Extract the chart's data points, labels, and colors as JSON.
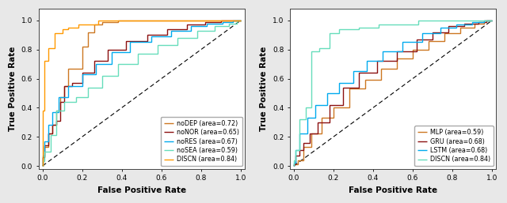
{
  "left_curves": [
    {
      "label": "noDEP (area=0.72)",
      "color": "#CC7722",
      "fpr": [
        0.0,
        0.0,
        0.01,
        0.01,
        0.03,
        0.03,
        0.05,
        0.05,
        0.07,
        0.07,
        0.09,
        0.09,
        0.11,
        0.11,
        0.13,
        0.13,
        0.2,
        0.2,
        0.23,
        0.23,
        0.26,
        0.26,
        0.3,
        0.3,
        0.38,
        0.38,
        0.55,
        0.55,
        0.65,
        0.65,
        0.75,
        0.75,
        0.85,
        0.85,
        0.95,
        0.95,
        1.0
      ],
      "tpr": [
        0.0,
        0.06,
        0.06,
        0.13,
        0.13,
        0.22,
        0.22,
        0.28,
        0.28,
        0.38,
        0.38,
        0.47,
        0.47,
        0.55,
        0.55,
        0.67,
        0.67,
        0.82,
        0.82,
        0.92,
        0.92,
        0.97,
        0.97,
        0.99,
        0.99,
        1.0,
        1.0,
        1.0,
        1.0,
        1.0,
        1.0,
        1.0,
        1.0,
        1.0,
        1.0,
        1.0,
        1.0
      ]
    },
    {
      "label": "noNOR (area=0.65)",
      "color": "#8B1010",
      "fpr": [
        0.0,
        0.0,
        0.01,
        0.01,
        0.03,
        0.03,
        0.05,
        0.05,
        0.07,
        0.07,
        0.09,
        0.09,
        0.11,
        0.11,
        0.15,
        0.15,
        0.2,
        0.2,
        0.26,
        0.26,
        0.33,
        0.33,
        0.42,
        0.42,
        0.53,
        0.53,
        0.63,
        0.63,
        0.73,
        0.73,
        0.82,
        0.82,
        0.9,
        0.9,
        0.96,
        0.96,
        1.0
      ],
      "tpr": [
        0.0,
        0.06,
        0.06,
        0.14,
        0.14,
        0.22,
        0.22,
        0.28,
        0.28,
        0.31,
        0.31,
        0.44,
        0.44,
        0.55,
        0.55,
        0.57,
        0.57,
        0.64,
        0.64,
        0.72,
        0.72,
        0.8,
        0.8,
        0.86,
        0.86,
        0.9,
        0.9,
        0.94,
        0.94,
        0.97,
        0.97,
        0.99,
        0.99,
        1.0,
        1.0,
        1.0,
        1.0
      ]
    },
    {
      "label": "noRES (area=0.67)",
      "color": "#00AAEE",
      "fpr": [
        0.0,
        0.0,
        0.01,
        0.01,
        0.03,
        0.03,
        0.05,
        0.05,
        0.08,
        0.08,
        0.13,
        0.13,
        0.2,
        0.2,
        0.27,
        0.27,
        0.35,
        0.35,
        0.44,
        0.44,
        0.55,
        0.55,
        0.65,
        0.65,
        0.75,
        0.75,
        0.83,
        0.83,
        0.91,
        0.91,
        0.96,
        0.96,
        1.0
      ],
      "tpr": [
        0.0,
        0.07,
        0.07,
        0.17,
        0.17,
        0.28,
        0.28,
        0.37,
        0.37,
        0.47,
        0.47,
        0.55,
        0.55,
        0.63,
        0.63,
        0.7,
        0.7,
        0.78,
        0.78,
        0.85,
        0.85,
        0.89,
        0.89,
        0.93,
        0.93,
        0.96,
        0.96,
        0.98,
        0.98,
        0.99,
        0.99,
        1.0,
        1.0
      ]
    },
    {
      "label": "noSEA (area=0.59)",
      "color": "#66DDBB",
      "fpr": [
        0.0,
        0.0,
        0.01,
        0.01,
        0.04,
        0.04,
        0.07,
        0.07,
        0.11,
        0.11,
        0.17,
        0.17,
        0.23,
        0.23,
        0.3,
        0.3,
        0.38,
        0.38,
        0.48,
        0.48,
        0.58,
        0.58,
        0.68,
        0.68,
        0.78,
        0.78,
        0.87,
        0.87,
        0.94,
        0.94,
        0.98,
        0.98,
        1.0
      ],
      "tpr": [
        0.0,
        0.03,
        0.03,
        0.1,
        0.1,
        0.21,
        0.21,
        0.38,
        0.38,
        0.44,
        0.44,
        0.47,
        0.47,
        0.54,
        0.54,
        0.62,
        0.62,
        0.7,
        0.7,
        0.77,
        0.77,
        0.83,
        0.83,
        0.88,
        0.88,
        0.93,
        0.93,
        0.96,
        0.96,
        0.98,
        0.98,
        1.0,
        1.0
      ]
    },
    {
      "label": "DISCN (area=0.84)",
      "color": "#FF9900",
      "fpr": [
        0.0,
        0.0,
        0.01,
        0.01,
        0.03,
        0.03,
        0.06,
        0.06,
        0.1,
        0.1,
        0.13,
        0.13,
        0.18,
        0.18,
        0.23,
        0.23,
        0.28,
        0.28,
        0.38,
        0.38,
        0.5,
        0.5,
        0.6,
        0.6,
        0.7,
        0.7,
        0.8,
        0.8,
        0.9,
        0.9,
        1.0
      ],
      "tpr": [
        0.0,
        0.38,
        0.38,
        0.72,
        0.72,
        0.81,
        0.81,
        0.91,
        0.91,
        0.94,
        0.94,
        0.95,
        0.95,
        0.97,
        0.97,
        0.97,
        0.97,
        1.0,
        1.0,
        1.0,
        1.0,
        1.0,
        1.0,
        1.0,
        1.0,
        1.0,
        1.0,
        1.0,
        1.0,
        1.0,
        1.0
      ]
    }
  ],
  "right_curves": [
    {
      "label": "MLP (area=0.59)",
      "color": "#CC7722",
      "fpr": [
        0.0,
        0.0,
        0.02,
        0.02,
        0.05,
        0.05,
        0.09,
        0.09,
        0.14,
        0.14,
        0.2,
        0.2,
        0.28,
        0.28,
        0.36,
        0.36,
        0.44,
        0.44,
        0.52,
        0.52,
        0.6,
        0.6,
        0.68,
        0.68,
        0.76,
        0.76,
        0.84,
        0.84,
        0.91,
        0.91,
        0.96,
        0.96,
        1.0
      ],
      "tpr": [
        0.0,
        0.01,
        0.01,
        0.04,
        0.04,
        0.13,
        0.13,
        0.22,
        0.22,
        0.33,
        0.33,
        0.4,
        0.4,
        0.53,
        0.53,
        0.59,
        0.59,
        0.67,
        0.67,
        0.74,
        0.74,
        0.8,
        0.8,
        0.86,
        0.86,
        0.91,
        0.91,
        0.95,
        0.95,
        0.98,
        0.98,
        1.0,
        1.0
      ]
    },
    {
      "label": "GRU (area=0.68)",
      "color": "#8B1010",
      "fpr": [
        0.0,
        0.0,
        0.01,
        0.01,
        0.03,
        0.03,
        0.05,
        0.05,
        0.08,
        0.08,
        0.12,
        0.12,
        0.18,
        0.18,
        0.25,
        0.25,
        0.33,
        0.33,
        0.42,
        0.42,
        0.52,
        0.52,
        0.62,
        0.62,
        0.7,
        0.7,
        0.78,
        0.78,
        0.86,
        0.86,
        0.93,
        0.93,
        0.97,
        0.97,
        1.0
      ],
      "tpr": [
        0.0,
        0.01,
        0.01,
        0.07,
        0.07,
        0.11,
        0.11,
        0.16,
        0.16,
        0.22,
        0.22,
        0.3,
        0.3,
        0.42,
        0.42,
        0.54,
        0.54,
        0.64,
        0.64,
        0.72,
        0.72,
        0.79,
        0.79,
        0.87,
        0.87,
        0.92,
        0.92,
        0.96,
        0.96,
        0.98,
        0.98,
        0.99,
        0.99,
        1.0,
        1.0
      ]
    },
    {
      "label": "LSTM (area=0.68)",
      "color": "#00AAEE",
      "fpr": [
        0.0,
        0.0,
        0.01,
        0.01,
        0.03,
        0.03,
        0.07,
        0.07,
        0.11,
        0.11,
        0.17,
        0.17,
        0.23,
        0.23,
        0.3,
        0.3,
        0.37,
        0.37,
        0.45,
        0.45,
        0.55,
        0.55,
        0.65,
        0.65,
        0.74,
        0.74,
        0.82,
        0.82,
        0.9,
        0.9,
        0.96,
        0.96,
        1.0
      ],
      "tpr": [
        0.0,
        0.02,
        0.02,
        0.11,
        0.11,
        0.22,
        0.22,
        0.33,
        0.33,
        0.42,
        0.42,
        0.5,
        0.5,
        0.57,
        0.57,
        0.65,
        0.65,
        0.72,
        0.72,
        0.79,
        0.79,
        0.85,
        0.85,
        0.91,
        0.91,
        0.95,
        0.95,
        0.97,
        0.97,
        0.99,
        0.99,
        1.0,
        1.0
      ]
    },
    {
      "label": "DISCN (area=0.84)",
      "color": "#66DDBB",
      "fpr": [
        0.0,
        0.0,
        0.01,
        0.01,
        0.03,
        0.03,
        0.06,
        0.06,
        0.09,
        0.09,
        0.13,
        0.13,
        0.18,
        0.18,
        0.23,
        0.23,
        0.33,
        0.33,
        0.43,
        0.43,
        0.53,
        0.53,
        0.63,
        0.63,
        0.73,
        0.73,
        0.83,
        0.83,
        0.93,
        0.93,
        1.0
      ],
      "tpr": [
        0.0,
        0.04,
        0.04,
        0.11,
        0.11,
        0.32,
        0.32,
        0.4,
        0.4,
        0.79,
        0.79,
        0.81,
        0.81,
        0.91,
        0.91,
        0.94,
        0.94,
        0.95,
        0.95,
        0.97,
        0.97,
        0.97,
        0.97,
        1.0,
        1.0,
        1.0,
        1.0,
        1.0,
        1.0,
        1.0,
        1.0
      ]
    }
  ],
  "diagonal": {
    "fpr": [
      0.0,
      1.0
    ],
    "tpr": [
      0.0,
      1.0
    ]
  },
  "xlabel": "False Positive Rate",
  "ylabel": "True Positive Rate",
  "xlim": [
    -0.02,
    1.02
  ],
  "ylim": [
    -0.02,
    1.08
  ],
  "xticks": [
    0.0,
    0.2,
    0.4,
    0.6,
    0.8,
    1.0
  ],
  "yticks": [
    0.0,
    0.2,
    0.4,
    0.6,
    0.8,
    1.0
  ],
  "tick_fontsize": 6.5,
  "label_fontsize": 7.5,
  "legend_fontsize": 5.8,
  "linewidth": 1.0,
  "background_color": "#e8e8e8",
  "axes_bg": "#ffffff"
}
